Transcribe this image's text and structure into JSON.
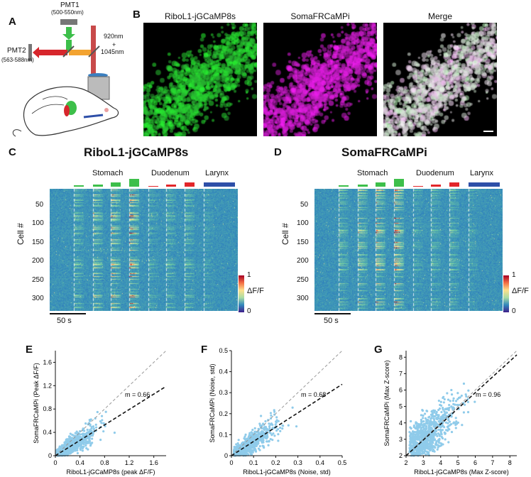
{
  "panels": {
    "a": "A",
    "b": "B",
    "c": "C",
    "d": "D",
    "e": "E",
    "f": "F",
    "g": "G"
  },
  "schematic": {
    "pmt1": "PMT1",
    "pmt1_range": "(500-550nm)",
    "pmt2": "PMT2",
    "pmt2_range": "(563-588nm)",
    "laser_1": "920nm",
    "laser_plus": "+",
    "laser_2": "1045nm"
  },
  "micrographs": {
    "titles": [
      "RiboL1-jGCaMP8s",
      "SomaFRCaMPi",
      "Merge"
    ]
  },
  "heatmaps": [
    {
      "title": "RiboL1-jGCaMP8s",
      "groups": [
        "Stomach",
        "Duodenum",
        "Larynx"
      ],
      "ylabel": "Cell #",
      "yticks": [
        "50",
        "100",
        "150",
        "200",
        "250",
        "300"
      ],
      "scalebar": "50 s",
      "colorbar_label": "ΔF/F",
      "colorbar_max": "1",
      "colorbar_min": "0"
    },
    {
      "title": "SomaFRCaMPi",
      "groups": [
        "Stomach",
        "Duodenum",
        "Larynx"
      ],
      "ylabel": "Cell #",
      "yticks": [
        "50",
        "100",
        "150",
        "200",
        "250",
        "300"
      ],
      "scalebar": "50 s",
      "colorbar_label": "ΔF/F",
      "colorbar_max": "1",
      "colorbar_min": "0"
    }
  ],
  "colors": {
    "stomach": "#3dbf4a",
    "duodenum": "#e2262a",
    "larynx": "#2e4fa8",
    "scatter": "#8fcbea"
  },
  "chart_data": [
    {
      "type": "scatter",
      "xlabel": "RiboL1-jGCaMP8s (peak ΔF/F)",
      "ylabel": "SomaFRCaMPi (Peak ΔF/F)",
      "xlim": [
        0,
        1.8
      ],
      "ylim": [
        0,
        1.8
      ],
      "xticks": [
        "0",
        "0.4",
        "0.8",
        "1.2",
        "1.6"
      ],
      "yticks": [
        "0",
        "0.4",
        "0.8",
        "1.2",
        "1.6"
      ],
      "slope": 0.66,
      "annotation": "m = 0.66"
    },
    {
      "type": "scatter",
      "xlabel": "RiboL1-jGCaMP8s (Noise, std)",
      "ylabel": "SomaFRCaMPi (Noise, std)",
      "xlim": [
        0,
        0.5
      ],
      "ylim": [
        0,
        0.5
      ],
      "xticks": [
        "0",
        "0.1",
        "0.2",
        "0.3",
        "0.4",
        "0.5"
      ],
      "yticks": [
        "0",
        "0.1",
        "0.2",
        "0.3",
        "0.4",
        "0.5"
      ],
      "slope": 0.68,
      "annotation": "m = 0.68"
    },
    {
      "type": "scatter",
      "xlabel": "RiboL1-jGCaMP8s (Max Z-score)",
      "ylabel": "SomaFRCaMPi (Max Z-score)",
      "xlim": [
        2,
        8.4
      ],
      "ylim": [
        2,
        8.4
      ],
      "xticks": [
        "2",
        "3",
        "4",
        "5",
        "6",
        "7",
        "8"
      ],
      "yticks": [
        "2",
        "3",
        "4",
        "5",
        "6",
        "7",
        "8"
      ],
      "slope": 0.96,
      "annotation": "m = 0.96"
    }
  ]
}
